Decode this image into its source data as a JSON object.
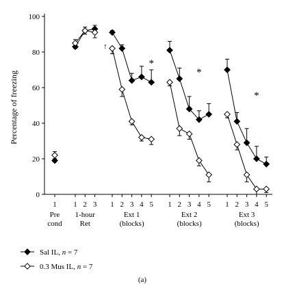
{
  "chart_data": {
    "type": "line",
    "ylabel": "Percentage of freezing",
    "ylim": [
      0,
      100
    ],
    "yticks": [
      0,
      20,
      40,
      60,
      80,
      100
    ],
    "panel_label": "(a)",
    "groups": [
      {
        "lines": [
          "Pre",
          "cond"
        ],
        "ticks": [
          "1"
        ]
      },
      {
        "lines": [
          "1-hour",
          "Ret"
        ],
        "ticks": [
          "1",
          "2",
          "3"
        ]
      },
      {
        "lines": [
          "Ext 1",
          "(blocks)"
        ],
        "ticks": [
          "1",
          "2",
          "3",
          "4",
          "5"
        ]
      },
      {
        "lines": [
          "Ext 2",
          "(blocks)"
        ],
        "ticks": [
          "1",
          "2",
          "3",
          "4",
          "5"
        ]
      },
      {
        "lines": [
          "Ext 3",
          "(blocks)"
        ],
        "ticks": [
          "1",
          "2",
          "3",
          "4",
          "5"
        ]
      }
    ],
    "series": [
      {
        "name": "Sal IL, n = 7",
        "legend_parts": [
          "Sal IL, ",
          "n",
          " = 7"
        ],
        "marker": "filled-diamond",
        "segments": [
          {
            "group": 0,
            "values": [
              19
            ],
            "errors": [
              5
            ]
          },
          {
            "group": 1,
            "values": [
              83,
              92,
              93
            ],
            "errors": [
              4,
              2,
              2
            ]
          },
          {
            "group": 2,
            "values": [
              91,
              82,
              64,
              66,
              63
            ],
            "errors": [
              1,
              2,
              4,
              6,
              7
            ]
          },
          {
            "group": 3,
            "values": [
              81,
              65,
              48,
              42,
              45
            ],
            "errors": [
              5,
              6,
              7,
              5,
              6
            ]
          },
          {
            "group": 4,
            "values": [
              70,
              41,
              29,
              20,
              17
            ],
            "errors": [
              6,
              5,
              8,
              7,
              4
            ]
          }
        ]
      },
      {
        "name": "0.3 Mus IL, n = 7",
        "legend_parts": [
          "0.3 Mus IL, ",
          "n",
          " = 7"
        ],
        "marker": "open-diamond",
        "segments": [
          {
            "group": 0,
            "values": [
              22
            ],
            "errors": [
              2
            ]
          },
          {
            "group": 1,
            "values": [
              85,
              92,
              91
            ],
            "errors": [
              3,
              2,
              3
            ]
          },
          {
            "group": 2,
            "values": [
              82,
              59,
              41,
              32,
              31
            ],
            "errors": [
              3,
              4,
              2,
              2,
              3
            ]
          },
          {
            "group": 3,
            "values": [
              63,
              37,
              34,
              19,
              11
            ],
            "errors": [
              2,
              4,
              3,
              3,
              4
            ]
          },
          {
            "group": 4,
            "values": [
              45,
              28,
              11,
              3,
              3
            ],
            "errors": [
              2,
              3,
              4,
              3,
              2
            ]
          }
        ]
      }
    ],
    "annotations": [
      {
        "text": "*",
        "group": 2,
        "position": 4,
        "y": 75
      },
      {
        "text": "*",
        "group": 3,
        "position": 3,
        "y": 70
      },
      {
        "text": "*",
        "group": 4,
        "position": 3,
        "y": 57
      },
      {
        "text": "↑",
        "group": 2,
        "position": 0,
        "y": 84
      }
    ]
  }
}
